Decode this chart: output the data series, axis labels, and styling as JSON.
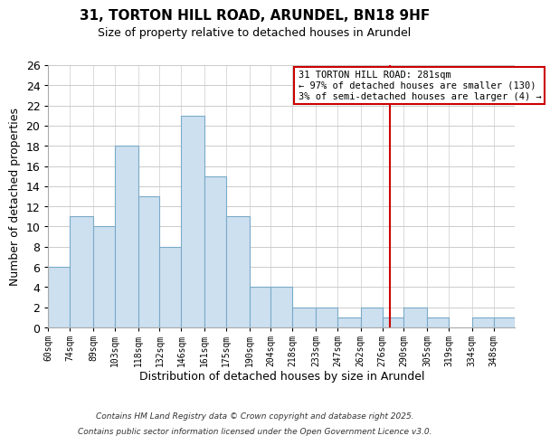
{
  "title": "31, TORTON HILL ROAD, ARUNDEL, BN18 9HF",
  "subtitle": "Size of property relative to detached houses in Arundel",
  "xlabel": "Distribution of detached houses by size in Arundel",
  "ylabel": "Number of detached properties",
  "bins": [
    60,
    74,
    89,
    103,
    118,
    132,
    146,
    161,
    175,
    190,
    204,
    218,
    233,
    247,
    262,
    276,
    290,
    305,
    319,
    334,
    348
  ],
  "counts": [
    6,
    11,
    10,
    18,
    13,
    8,
    21,
    15,
    11,
    4,
    4,
    2,
    2,
    1,
    2,
    1,
    2,
    1,
    0,
    1,
    1
  ],
  "bar_color": "#cde0f0",
  "bar_edge_color": "#7aaac8",
  "tick_labels": [
    "60sqm",
    "74sqm",
    "89sqm",
    "103sqm",
    "118sqm",
    "132sqm",
    "146sqm",
    "161sqm",
    "175sqm",
    "190sqm",
    "204sqm",
    "218sqm",
    "233sqm",
    "247sqm",
    "262sqm",
    "276sqm",
    "290sqm",
    "305sqm",
    "319sqm",
    "334sqm",
    "348sqm"
  ],
  "ylim": [
    0,
    26
  ],
  "yticks": [
    0,
    2,
    4,
    6,
    8,
    10,
    12,
    14,
    16,
    18,
    20,
    22,
    24,
    26
  ],
  "vline_x": 281,
  "vline_color": "#cc0000",
  "annotation_title": "31 TORTON HILL ROAD: 281sqm",
  "annotation_line1": "← 97% of detached houses are smaller (130)",
  "annotation_line2": "3% of semi-detached houses are larger (4) →",
  "annotation_box_color": "#cc0000",
  "footnote1": "Contains HM Land Registry data © Crown copyright and database right 2025.",
  "footnote2": "Contains public sector information licensed under the Open Government Licence v3.0.",
  "background_color": "#ffffff",
  "grid_color": "#cccccc"
}
